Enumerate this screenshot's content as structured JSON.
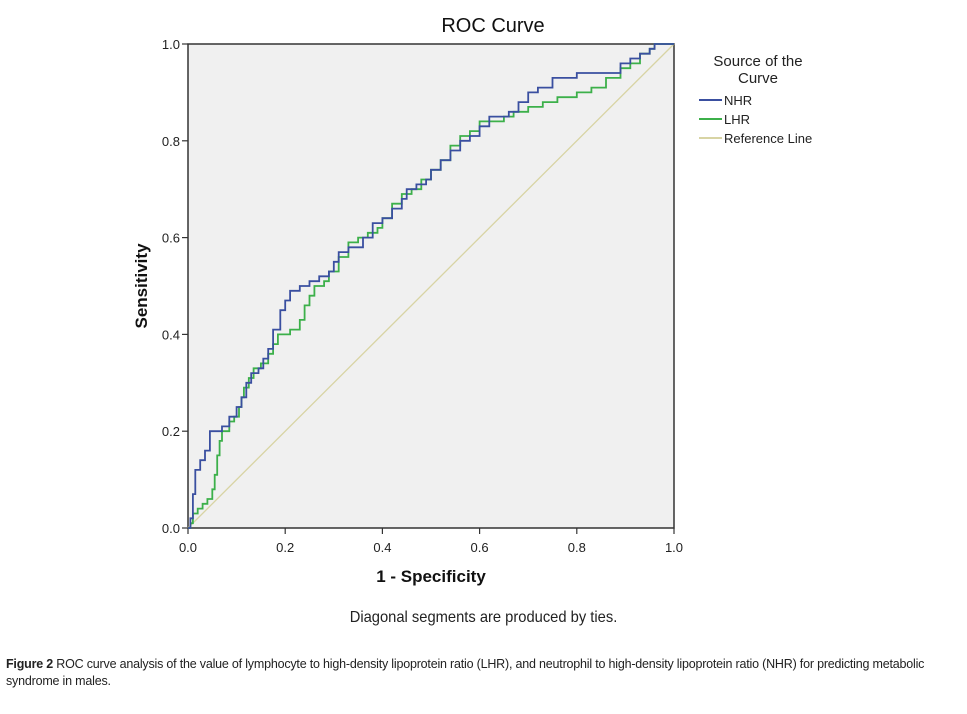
{
  "chart_data": {
    "type": "line",
    "title": "ROC Curve",
    "xlabel": "1 - Specificity",
    "ylabel": "Sensitivity",
    "xlim": [
      0.0,
      1.0
    ],
    "ylim": [
      0.0,
      1.0
    ],
    "xticks": [
      "0.0",
      "0.2",
      "0.4",
      "0.6",
      "0.8",
      "1.0"
    ],
    "yticks": [
      "0.0",
      "0.2",
      "0.4",
      "0.6",
      "0.8",
      "1.0"
    ],
    "grid": false,
    "legend": {
      "title": "Source of the Curve",
      "placement": "right",
      "entries": [
        "NHR",
        "LHR",
        "Reference Line"
      ]
    },
    "series": [
      {
        "name": "NHR",
        "color": "#3a4fa0",
        "points": [
          [
            0,
            0
          ],
          [
            0.005,
            0
          ],
          [
            0.005,
            0.02
          ],
          [
            0.01,
            0.02
          ],
          [
            0.01,
            0.07
          ],
          [
            0.015,
            0.07
          ],
          [
            0.015,
            0.12
          ],
          [
            0.025,
            0.12
          ],
          [
            0.025,
            0.14
          ],
          [
            0.035,
            0.14
          ],
          [
            0.035,
            0.16
          ],
          [
            0.045,
            0.16
          ],
          [
            0.045,
            0.2
          ],
          [
            0.07,
            0.2
          ],
          [
            0.07,
            0.21
          ],
          [
            0.085,
            0.21
          ],
          [
            0.085,
            0.23
          ],
          [
            0.1,
            0.23
          ],
          [
            0.1,
            0.25
          ],
          [
            0.11,
            0.25
          ],
          [
            0.11,
            0.27
          ],
          [
            0.12,
            0.27
          ],
          [
            0.12,
            0.3
          ],
          [
            0.13,
            0.3
          ],
          [
            0.13,
            0.32
          ],
          [
            0.145,
            0.32
          ],
          [
            0.145,
            0.33
          ],
          [
            0.155,
            0.33
          ],
          [
            0.155,
            0.35
          ],
          [
            0.165,
            0.35
          ],
          [
            0.165,
            0.37
          ],
          [
            0.175,
            0.37
          ],
          [
            0.175,
            0.41
          ],
          [
            0.19,
            0.41
          ],
          [
            0.19,
            0.45
          ],
          [
            0.2,
            0.45
          ],
          [
            0.2,
            0.47
          ],
          [
            0.21,
            0.47
          ],
          [
            0.21,
            0.49
          ],
          [
            0.23,
            0.49
          ],
          [
            0.23,
            0.5
          ],
          [
            0.25,
            0.5
          ],
          [
            0.25,
            0.51
          ],
          [
            0.27,
            0.51
          ],
          [
            0.27,
            0.52
          ],
          [
            0.29,
            0.52
          ],
          [
            0.29,
            0.53
          ],
          [
            0.3,
            0.53
          ],
          [
            0.3,
            0.55
          ],
          [
            0.31,
            0.55
          ],
          [
            0.31,
            0.57
          ],
          [
            0.33,
            0.57
          ],
          [
            0.33,
            0.58
          ],
          [
            0.36,
            0.58
          ],
          [
            0.36,
            0.6
          ],
          [
            0.38,
            0.6
          ],
          [
            0.38,
            0.63
          ],
          [
            0.4,
            0.63
          ],
          [
            0.4,
            0.64
          ],
          [
            0.42,
            0.64
          ],
          [
            0.42,
            0.66
          ],
          [
            0.44,
            0.66
          ],
          [
            0.44,
            0.68
          ],
          [
            0.45,
            0.68
          ],
          [
            0.45,
            0.7
          ],
          [
            0.47,
            0.7
          ],
          [
            0.47,
            0.71
          ],
          [
            0.49,
            0.71
          ],
          [
            0.49,
            0.72
          ],
          [
            0.5,
            0.72
          ],
          [
            0.5,
            0.74
          ],
          [
            0.52,
            0.74
          ],
          [
            0.52,
            0.76
          ],
          [
            0.54,
            0.76
          ],
          [
            0.54,
            0.78
          ],
          [
            0.56,
            0.78
          ],
          [
            0.56,
            0.8
          ],
          [
            0.58,
            0.8
          ],
          [
            0.58,
            0.81
          ],
          [
            0.6,
            0.81
          ],
          [
            0.6,
            0.83
          ],
          [
            0.62,
            0.83
          ],
          [
            0.62,
            0.85
          ],
          [
            0.66,
            0.85
          ],
          [
            0.66,
            0.86
          ],
          [
            0.68,
            0.86
          ],
          [
            0.68,
            0.88
          ],
          [
            0.7,
            0.88
          ],
          [
            0.7,
            0.9
          ],
          [
            0.72,
            0.9
          ],
          [
            0.72,
            0.91
          ],
          [
            0.75,
            0.91
          ],
          [
            0.75,
            0.93
          ],
          [
            0.8,
            0.93
          ],
          [
            0.8,
            0.94
          ],
          [
            0.89,
            0.94
          ],
          [
            0.89,
            0.96
          ],
          [
            0.91,
            0.96
          ],
          [
            0.91,
            0.97
          ],
          [
            0.93,
            0.97
          ],
          [
            0.93,
            0.98
          ],
          [
            0.95,
            0.98
          ],
          [
            0.95,
            0.99
          ],
          [
            0.96,
            0.99
          ],
          [
            0.96,
            1.0
          ],
          [
            1.0,
            1.0
          ]
        ]
      },
      {
        "name": "LHR",
        "color": "#3cb04a",
        "points": [
          [
            0,
            0
          ],
          [
            0.005,
            0
          ],
          [
            0.005,
            0.01
          ],
          [
            0.01,
            0.01
          ],
          [
            0.01,
            0.03
          ],
          [
            0.02,
            0.03
          ],
          [
            0.02,
            0.04
          ],
          [
            0.03,
            0.04
          ],
          [
            0.03,
            0.05
          ],
          [
            0.04,
            0.05
          ],
          [
            0.04,
            0.06
          ],
          [
            0.05,
            0.06
          ],
          [
            0.05,
            0.08
          ],
          [
            0.055,
            0.08
          ],
          [
            0.055,
            0.11
          ],
          [
            0.06,
            0.11
          ],
          [
            0.06,
            0.15
          ],
          [
            0.065,
            0.15
          ],
          [
            0.065,
            0.18
          ],
          [
            0.07,
            0.18
          ],
          [
            0.07,
            0.2
          ],
          [
            0.085,
            0.2
          ],
          [
            0.085,
            0.22
          ],
          [
            0.095,
            0.22
          ],
          [
            0.095,
            0.23
          ],
          [
            0.105,
            0.23
          ],
          [
            0.105,
            0.25
          ],
          [
            0.11,
            0.25
          ],
          [
            0.11,
            0.27
          ],
          [
            0.115,
            0.27
          ],
          [
            0.115,
            0.29
          ],
          [
            0.125,
            0.29
          ],
          [
            0.125,
            0.31
          ],
          [
            0.135,
            0.31
          ],
          [
            0.135,
            0.33
          ],
          [
            0.15,
            0.33
          ],
          [
            0.15,
            0.34
          ],
          [
            0.165,
            0.34
          ],
          [
            0.165,
            0.36
          ],
          [
            0.175,
            0.36
          ],
          [
            0.175,
            0.38
          ],
          [
            0.185,
            0.38
          ],
          [
            0.185,
            0.4
          ],
          [
            0.21,
            0.4
          ],
          [
            0.21,
            0.41
          ],
          [
            0.23,
            0.41
          ],
          [
            0.23,
            0.43
          ],
          [
            0.24,
            0.43
          ],
          [
            0.24,
            0.46
          ],
          [
            0.25,
            0.46
          ],
          [
            0.25,
            0.48
          ],
          [
            0.26,
            0.48
          ],
          [
            0.26,
            0.5
          ],
          [
            0.28,
            0.5
          ],
          [
            0.28,
            0.51
          ],
          [
            0.29,
            0.51
          ],
          [
            0.29,
            0.53
          ],
          [
            0.31,
            0.53
          ],
          [
            0.31,
            0.56
          ],
          [
            0.33,
            0.56
          ],
          [
            0.33,
            0.59
          ],
          [
            0.35,
            0.59
          ],
          [
            0.35,
            0.6
          ],
          [
            0.37,
            0.6
          ],
          [
            0.37,
            0.61
          ],
          [
            0.39,
            0.61
          ],
          [
            0.39,
            0.62
          ],
          [
            0.4,
            0.62
          ],
          [
            0.4,
            0.64
          ],
          [
            0.42,
            0.64
          ],
          [
            0.42,
            0.67
          ],
          [
            0.44,
            0.67
          ],
          [
            0.44,
            0.69
          ],
          [
            0.46,
            0.69
          ],
          [
            0.46,
            0.7
          ],
          [
            0.48,
            0.7
          ],
          [
            0.48,
            0.72
          ],
          [
            0.5,
            0.72
          ],
          [
            0.5,
            0.74
          ],
          [
            0.52,
            0.74
          ],
          [
            0.52,
            0.76
          ],
          [
            0.54,
            0.76
          ],
          [
            0.54,
            0.79
          ],
          [
            0.56,
            0.79
          ],
          [
            0.56,
            0.81
          ],
          [
            0.58,
            0.81
          ],
          [
            0.58,
            0.82
          ],
          [
            0.6,
            0.82
          ],
          [
            0.6,
            0.84
          ],
          [
            0.65,
            0.84
          ],
          [
            0.65,
            0.85
          ],
          [
            0.67,
            0.85
          ],
          [
            0.67,
            0.86
          ],
          [
            0.7,
            0.86
          ],
          [
            0.7,
            0.87
          ],
          [
            0.73,
            0.87
          ],
          [
            0.73,
            0.88
          ],
          [
            0.76,
            0.88
          ],
          [
            0.76,
            0.89
          ],
          [
            0.8,
            0.89
          ],
          [
            0.8,
            0.9
          ],
          [
            0.83,
            0.9
          ],
          [
            0.83,
            0.91
          ],
          [
            0.86,
            0.91
          ],
          [
            0.86,
            0.93
          ],
          [
            0.89,
            0.93
          ],
          [
            0.89,
            0.95
          ],
          [
            0.91,
            0.95
          ],
          [
            0.91,
            0.96
          ],
          [
            0.93,
            0.96
          ],
          [
            0.93,
            0.98
          ],
          [
            0.95,
            0.98
          ],
          [
            0.95,
            0.99
          ],
          [
            0.96,
            0.99
          ],
          [
            0.96,
            1.0
          ],
          [
            1.0,
            1.0
          ]
        ]
      },
      {
        "name": "Reference Line",
        "color": "#d8d4a4",
        "points": [
          [
            0,
            0
          ],
          [
            1,
            1
          ]
        ]
      }
    ]
  },
  "figure": {
    "note": "Diagonal segments are produced by ties.",
    "caption_label": "Figure 2",
    "caption_text": " ROC curve analysis of the value of lymphocyte to high-density lipoprotein ratio (LHR), and neutrophil to high-density lipoprotein ratio (NHR) for predicting metabolic syndrome in males."
  }
}
